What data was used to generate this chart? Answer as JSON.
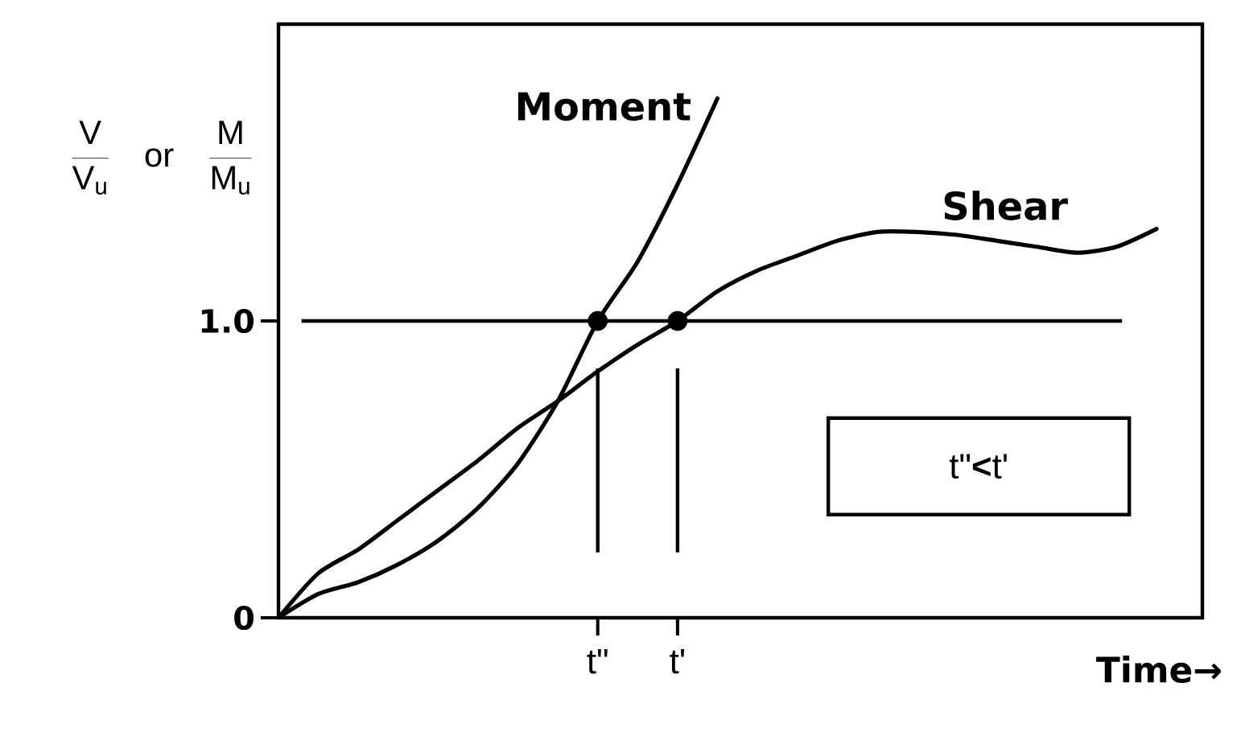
{
  "chart_data": {
    "type": "line",
    "ylabel": "\\frac{\\mathrm{V}}{\\mathrm{V}_{\\mathrm{u}}}\\quad\\mathrm{or}\\quad\\frac{\\mathrm{M}}{\\mathrm{M}_{\\mathrm{u}}}",
    "xlabel": "Time→",
    "annotations": [
      "t\"**<**t'"
    ],
    "categories": [
      null,
      null,
      null,
      null,
      null,
      null,
      null,
      null,
      "t\"",
      null,
      "t'",
      null,
      null,
      null,
      null,
      null,
      null,
      null,
      null,
      null,
      null,
      null,
      null,
      null
    ],
    "ylim": [
      0,
      2
    ],
    "yticks": [
      0,
      {
        "value": 1,
        "label": "1.0"
      }
    ],
    "ref_lines": [
      {
        "axis": "y",
        "value": 1
      },
      {
        "axis": "x",
        "value": "t\""
      },
      {
        "axis": "x",
        "value": "t'"
      }
    ],
    "series": [
      {
        "name": "Moment",
        "color": "#000000",
        "values": [
          0,
          0.08,
          0.12,
          0.18,
          0.26,
          0.37,
          0.52,
          0.73,
          1.0,
          1.2,
          1.46,
          1.75,
          null,
          null,
          null,
          null,
          null,
          null,
          null,
          null,
          null,
          null,
          null,
          null
        ]
      },
      {
        "name": "Shear",
        "color": "#000000",
        "values": [
          0,
          0.15,
          0.23,
          0.33,
          0.43,
          0.53,
          0.64,
          0.73,
          0.83,
          0.92,
          1.0,
          1.1,
          1.17,
          1.22,
          1.27,
          1.3,
          1.3,
          1.29,
          1.27,
          1.25,
          1.23,
          1.25,
          1.31,
          null
        ]
      },
      {
        "type": "scatter",
        "marker": "circle",
        "color": "#000000",
        "values": [
          null,
          null,
          null,
          null,
          null,
          null,
          null,
          null,
          1,
          null,
          1,
          null,
          null,
          null,
          null,
          null,
          null,
          null,
          null,
          null,
          null,
          null,
          null,
          null
        ]
      }
    ]
  }
}
